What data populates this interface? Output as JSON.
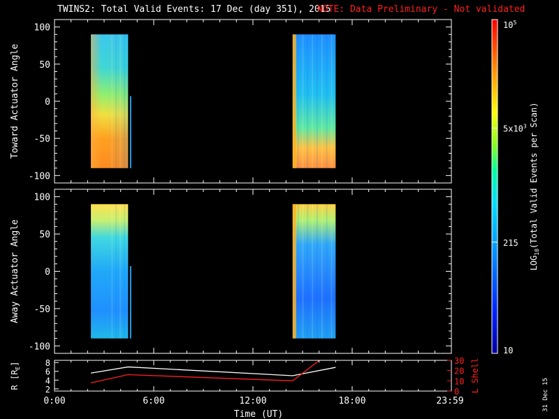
{
  "title": {
    "main": "TWINS2: Total Valid Events: 17 Dec (day 351), 2015",
    "note": "NOTE: Data Preliminary - Not validated"
  },
  "stamp": "31 Dec 15",
  "colorbar": {
    "label": "LOG",
    "label_sub": "10",
    "label_rest": "(Total Valid Events per Scan)",
    "ticks": [
      {
        "value": 10,
        "base": "10",
        "exp": ""
      },
      {
        "value": 215,
        "base": "215",
        "exp": ""
      },
      {
        "value": 5000,
        "base": "5x10",
        "exp": "3"
      },
      {
        "value": 100000,
        "base": "10",
        "exp": "5"
      }
    ],
    "range": [
      10,
      100000
    ],
    "scale": "log"
  },
  "chart_data": [
    {
      "type": "heatmap",
      "ylabel": "Toward Actuator Angle",
      "ylim": [
        -110,
        110
      ],
      "yticks": [
        -100,
        -50,
        0,
        50,
        100
      ],
      "xlim_hours": [
        0,
        24
      ],
      "blocks": [
        {
          "t_start_h": 2.2,
          "t_end_h": 4.45,
          "angle_min": -90,
          "angle_max": 90
        },
        {
          "t_start_h": 14.4,
          "t_end_h": 17.0,
          "angle_min": -90,
          "angle_max": 90
        }
      ],
      "spike": {
        "t_h": 4.6,
        "angle_min": -90,
        "angle_max": 7
      }
    },
    {
      "type": "heatmap",
      "ylabel": "Away Actuator Angle",
      "ylim": [
        -110,
        110
      ],
      "yticks": [
        -100,
        -50,
        0,
        50,
        100
      ],
      "xlim_hours": [
        0,
        24
      ],
      "blocks": [
        {
          "t_start_h": 2.2,
          "t_end_h": 4.45,
          "angle_min": -90,
          "angle_max": 90
        },
        {
          "t_start_h": 14.4,
          "t_end_h": 17.0,
          "angle_min": -90,
          "angle_max": 90
        }
      ],
      "spike": {
        "t_h": 4.6,
        "angle_min": -90,
        "angle_max": 7
      }
    },
    {
      "type": "line",
      "xlabel": "Time (UT)",
      "xticks": [
        "0:00",
        "6:00",
        "12:00",
        "18:00",
        "23:59"
      ],
      "xtick_hours": [
        0,
        6,
        12,
        18,
        24
      ],
      "ylabel_left": "R [R",
      "ylabel_left_sub": "E",
      "ylabel_left_tail": "]",
      "ylim_left": [
        1.5,
        8.5
      ],
      "yticks_left": [
        2,
        4,
        6,
        8
      ],
      "ylabel_right": "L Shell",
      "ylim_right": [
        0,
        30
      ],
      "yticks_right": [
        0,
        10,
        20,
        30
      ],
      "series": [
        {
          "color": "#ffffff",
          "axis": "left",
          "x": [
            2.2,
            4.45,
            14.4,
            17.0
          ],
          "y": [
            5.6,
            7.0,
            5.0,
            6.9
          ]
        },
        {
          "color": "#ff2020",
          "axis": "right",
          "x": [
            2.2,
            4.45,
            14.4,
            16.1
          ],
          "y": [
            8,
            16,
            10,
            31
          ]
        }
      ]
    }
  ]
}
